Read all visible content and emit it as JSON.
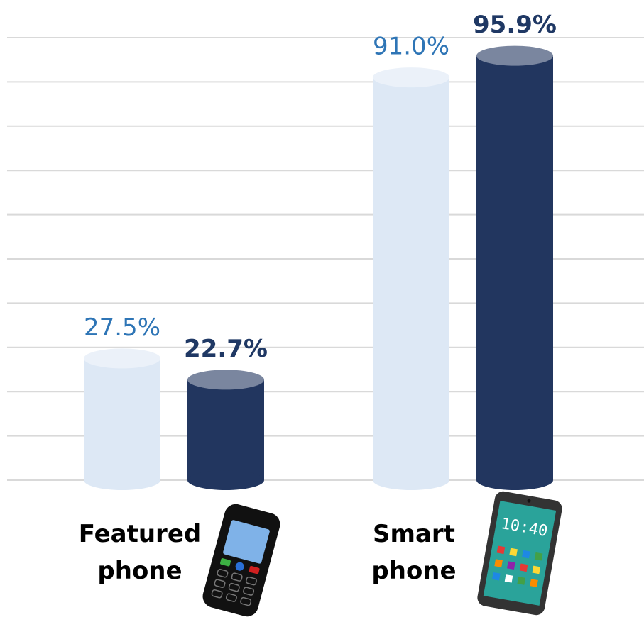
{
  "chart_data": {
    "type": "cylinder_bar",
    "categories": [
      "Featured\nphone",
      "Smart\nphone"
    ],
    "series": [
      {
        "color": "#dde8f5",
        "values": [
          27.5,
          91.0
        ],
        "value_labels": [
          "27.5%",
          "91.0%"
        ],
        "label_color": "#2e75b6",
        "label_bold": false
      },
      {
        "color": "#22365f",
        "values": [
          22.7,
          95.9
        ],
        "value_labels": [
          "22.7%",
          "95.9%"
        ],
        "label_color": "#1f3864",
        "label_bold": true
      }
    ],
    "ylim": [
      0,
      100
    ],
    "yticks": [
      0,
      10,
      20,
      30,
      40,
      50,
      60,
      70,
      80,
      90,
      100
    ],
    "show_tick_labels": false,
    "grid": true
  }
}
